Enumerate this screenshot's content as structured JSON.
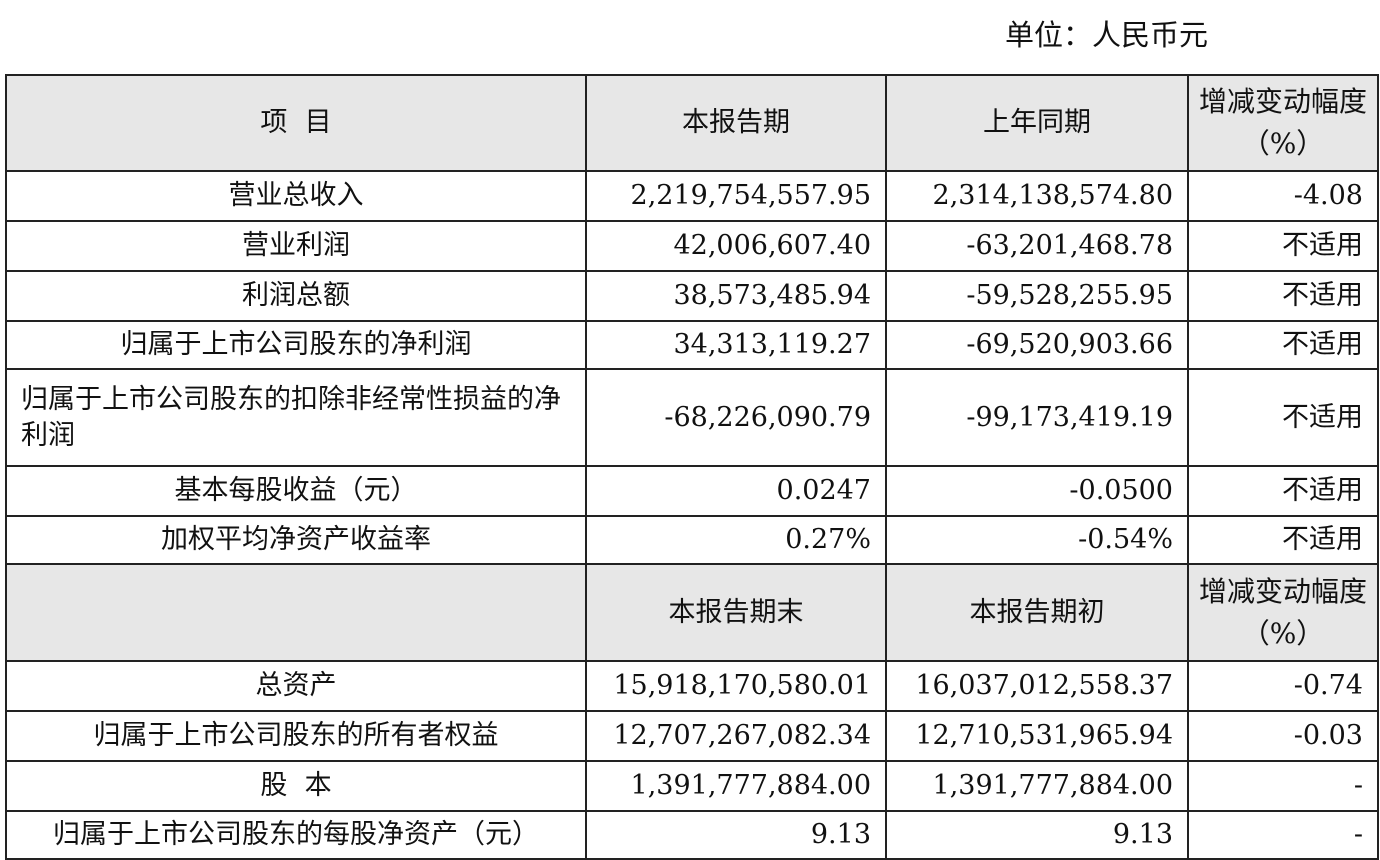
{
  "unit_label": "单位：人民币元",
  "header1": {
    "item": "项  目",
    "current": "本报告期",
    "prior": "上年同期",
    "change": "增减变动幅度（%）"
  },
  "rows1": [
    {
      "label": "营业总收入",
      "current": "2,219,754,557.95",
      "prior": "2,314,138,574.80",
      "change": "-4.08"
    },
    {
      "label": "营业利润",
      "current": "42,006,607.40",
      "prior": "-63,201,468.78",
      "change": "不适用"
    },
    {
      "label": "利润总额",
      "current": "38,573,485.94",
      "prior": "-59,528,255.95",
      "change": "不适用"
    },
    {
      "label": "归属于上市公司股东的净利润",
      "current": "34,313,119.27",
      "prior": "-69,520,903.66",
      "change": "不适用"
    },
    {
      "label": "归属于上市公司股东的扣除非经常性损益的净利润",
      "current": "-68,226,090.79",
      "prior": "-99,173,419.19",
      "change": "不适用"
    },
    {
      "label": "基本每股收益（元）",
      "current": "0.0247",
      "prior": "-0.0500",
      "change": "不适用"
    },
    {
      "label": "加权平均净资产收益率",
      "current": "0.27%",
      "prior": "-0.54%",
      "change": "不适用"
    }
  ],
  "header2": {
    "item": "",
    "current": "本报告期末",
    "prior": "本报告期初",
    "change": "增减变动幅度（%）"
  },
  "rows2": [
    {
      "label": "总资产",
      "current": "15,918,170,580.01",
      "prior": "16,037,012,558.37",
      "change": "-0.74"
    },
    {
      "label": "归属于上市公司股东的所有者权益",
      "current": "12,707,267,082.34",
      "prior": "12,710,531,965.94",
      "change": "-0.03"
    },
    {
      "label": "股  本",
      "current": "1,391,777,884.00",
      "prior": "1,391,777,884.00",
      "change": "-"
    },
    {
      "label": "归属于上市公司股东的每股净资产（元）",
      "current": "9.13",
      "prior": "9.13",
      "change": "-"
    }
  ]
}
